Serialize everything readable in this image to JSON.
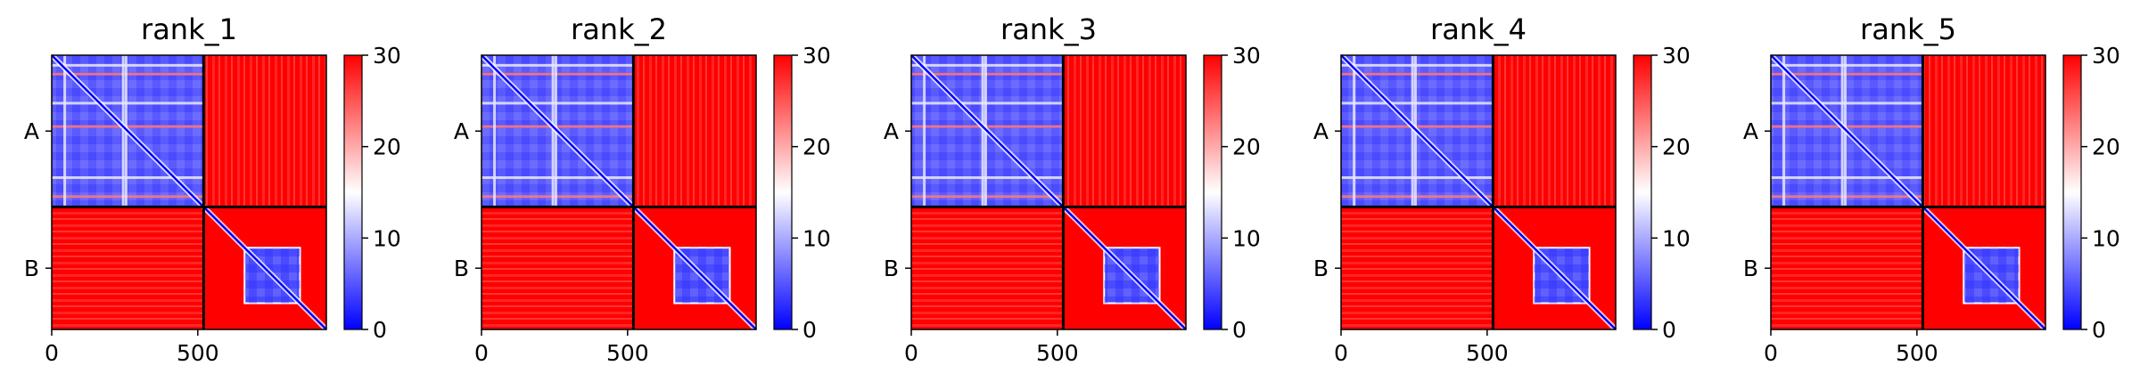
{
  "chart_data": {
    "type": "heatmap",
    "panels": [
      {
        "title": "rank_1"
      },
      {
        "title": "rank_2"
      },
      {
        "title": "rank_3"
      },
      {
        "title": "rank_4"
      },
      {
        "title": "rank_5"
      }
    ],
    "chains": [
      "A",
      "B"
    ],
    "chain_boundary": 520,
    "sequence_length": 940,
    "x_ticks": [
      0,
      500
    ],
    "x_tick_labels": [
      "0",
      "500"
    ],
    "colorbar": {
      "range": [
        0,
        30
      ],
      "ticks": [
        0,
        10,
        20,
        30
      ],
      "tick_labels": [
        "0",
        "10",
        "20",
        "30"
      ],
      "colormap": "bwr"
    },
    "colors": {
      "low": "#0000ff",
      "mid": "#ffffff",
      "high": "#ff0000",
      "boundary": "#000000"
    },
    "blocks": {
      "A-A": "mostly low values (blue) with a diagonal and scattered high streaks",
      "A-B": "high values (red)",
      "B-A": "high values (red)",
      "B-B": "high values except a low-value (blue) square block around residues ~660-850 and the diagonal"
    }
  }
}
